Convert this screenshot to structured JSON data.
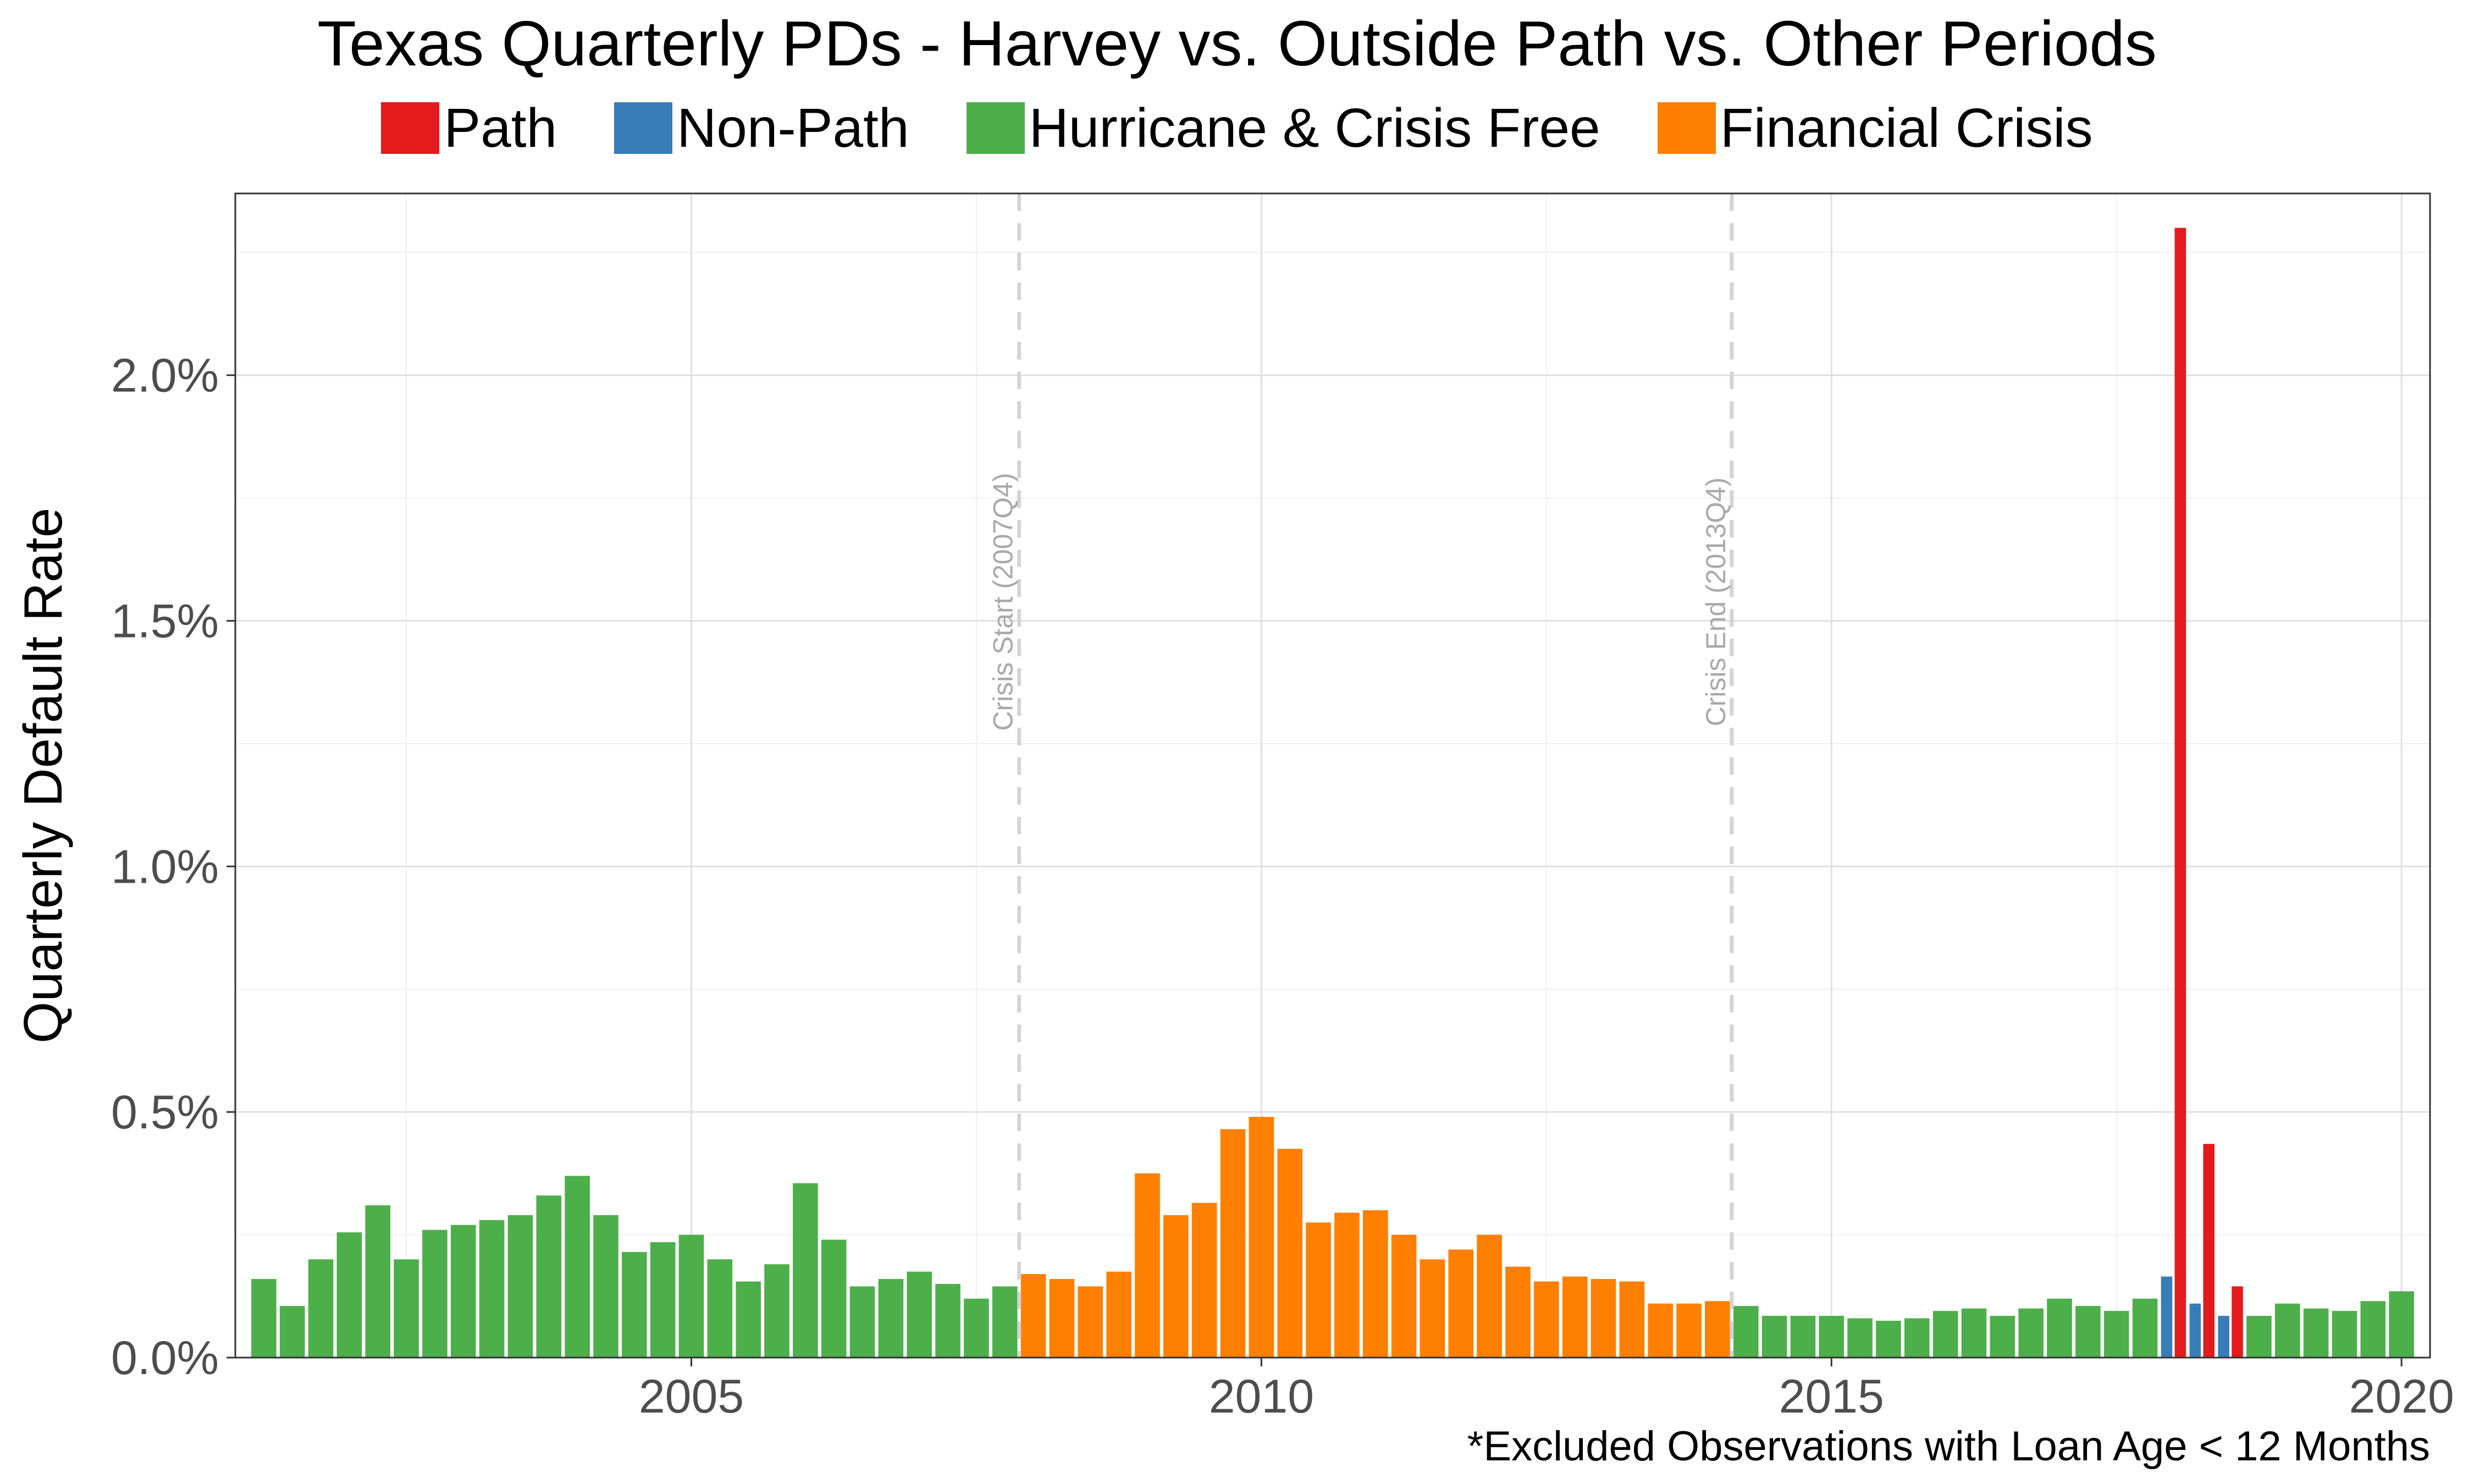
{
  "chart_data": {
    "type": "bar",
    "title": "Texas Quarterly PDs - Harvey vs. Outside Path vs. Other Periods",
    "ylabel": "Quarterly Default Rate",
    "xlabel": "",
    "footnote": "*Excluded Observations with Loan Age < 12 Months",
    "ylim": [
      0,
      2.37
    ],
    "xlim": [
      2001.0,
      2020.25
    ],
    "y_ticks": [
      0,
      0.5,
      1.0,
      1.5,
      2.0
    ],
    "y_tick_labels": [
      "0.0%",
      "0.5%",
      "1.0%",
      "1.5%",
      "2.0%"
    ],
    "x_ticks": [
      2005,
      2010,
      2015,
      2020
    ],
    "x_tick_labels": [
      "2005",
      "2010",
      "2015",
      "2020"
    ],
    "grid": true,
    "legend_position": "top",
    "legend": [
      {
        "key": "path",
        "label": "Path",
        "color": "#E41A1C"
      },
      {
        "key": "nonpath",
        "label": "Non-Path",
        "color": "#377EB8"
      },
      {
        "key": "free",
        "label": "Hurricane & Crisis Free",
        "color": "#4DAF4A"
      },
      {
        "key": "crisis",
        "label": "Financial Crisis",
        "color": "#FF7F00"
      }
    ],
    "annotations": [
      {
        "x": 2007.875,
        "label": "Crisis Start (2007Q4)"
      },
      {
        "x": 2014.125,
        "label": "Crisis End (2013Q4)"
      }
    ],
    "bar_width_years": 0.22,
    "bars": [
      {
        "x": 2001.25,
        "group": "free",
        "value": 0.16
      },
      {
        "x": 2001.5,
        "group": "free",
        "value": 0.105
      },
      {
        "x": 2001.75,
        "group": "free",
        "value": 0.2
      },
      {
        "x": 2002.0,
        "group": "free",
        "value": 0.255
      },
      {
        "x": 2002.25,
        "group": "free",
        "value": 0.31
      },
      {
        "x": 2002.5,
        "group": "free",
        "value": 0.2
      },
      {
        "x": 2002.75,
        "group": "free",
        "value": 0.26
      },
      {
        "x": 2003.0,
        "group": "free",
        "value": 0.27
      },
      {
        "x": 2003.25,
        "group": "free",
        "value": 0.28
      },
      {
        "x": 2003.5,
        "group": "free",
        "value": 0.29
      },
      {
        "x": 2003.75,
        "group": "free",
        "value": 0.33
      },
      {
        "x": 2004.0,
        "group": "free",
        "value": 0.37
      },
      {
        "x": 2004.25,
        "group": "free",
        "value": 0.29
      },
      {
        "x": 2004.5,
        "group": "free",
        "value": 0.215
      },
      {
        "x": 2004.75,
        "group": "free",
        "value": 0.235
      },
      {
        "x": 2005.0,
        "group": "free",
        "value": 0.25
      },
      {
        "x": 2005.25,
        "group": "free",
        "value": 0.2
      },
      {
        "x": 2005.5,
        "group": "free",
        "value": 0.155
      },
      {
        "x": 2005.75,
        "group": "free",
        "value": 0.19
      },
      {
        "x": 2006.0,
        "group": "free",
        "value": 0.355
      },
      {
        "x": 2006.25,
        "group": "free",
        "value": 0.24
      },
      {
        "x": 2006.5,
        "group": "free",
        "value": 0.145
      },
      {
        "x": 2006.75,
        "group": "free",
        "value": 0.16
      },
      {
        "x": 2007.0,
        "group": "free",
        "value": 0.175
      },
      {
        "x": 2007.25,
        "group": "free",
        "value": 0.15
      },
      {
        "x": 2007.5,
        "group": "free",
        "value": 0.12
      },
      {
        "x": 2007.75,
        "group": "free",
        "value": 0.145
      },
      {
        "x": 2008.0,
        "group": "crisis",
        "value": 0.17
      },
      {
        "x": 2008.25,
        "group": "crisis",
        "value": 0.16
      },
      {
        "x": 2008.5,
        "group": "crisis",
        "value": 0.145
      },
      {
        "x": 2008.75,
        "group": "crisis",
        "value": 0.175
      },
      {
        "x": 2009.0,
        "group": "crisis",
        "value": 0.375
      },
      {
        "x": 2009.25,
        "group": "crisis",
        "value": 0.29
      },
      {
        "x": 2009.5,
        "group": "crisis",
        "value": 0.315
      },
      {
        "x": 2009.75,
        "group": "crisis",
        "value": 0.465
      },
      {
        "x": 2010.0,
        "group": "crisis",
        "value": 0.49
      },
      {
        "x": 2010.25,
        "group": "crisis",
        "value": 0.425
      },
      {
        "x": 2010.5,
        "group": "crisis",
        "value": 0.275
      },
      {
        "x": 2010.75,
        "group": "crisis",
        "value": 0.295
      },
      {
        "x": 2011.0,
        "group": "crisis",
        "value": 0.3
      },
      {
        "x": 2011.25,
        "group": "crisis",
        "value": 0.25
      },
      {
        "x": 2011.5,
        "group": "crisis",
        "value": 0.2
      },
      {
        "x": 2011.75,
        "group": "crisis",
        "value": 0.22
      },
      {
        "x": 2012.0,
        "group": "crisis",
        "value": 0.25
      },
      {
        "x": 2012.25,
        "group": "crisis",
        "value": 0.185
      },
      {
        "x": 2012.5,
        "group": "crisis",
        "value": 0.155
      },
      {
        "x": 2012.75,
        "group": "crisis",
        "value": 0.165
      },
      {
        "x": 2013.0,
        "group": "crisis",
        "value": 0.16
      },
      {
        "x": 2013.25,
        "group": "crisis",
        "value": 0.155
      },
      {
        "x": 2013.5,
        "group": "crisis",
        "value": 0.11
      },
      {
        "x": 2013.75,
        "group": "crisis",
        "value": 0.11
      },
      {
        "x": 2014.0,
        "group": "crisis",
        "value": 0.115
      },
      {
        "x": 2014.25,
        "group": "free",
        "value": 0.105
      },
      {
        "x": 2014.5,
        "group": "free",
        "value": 0.085
      },
      {
        "x": 2014.75,
        "group": "free",
        "value": 0.085
      },
      {
        "x": 2015.0,
        "group": "free",
        "value": 0.085
      },
      {
        "x": 2015.25,
        "group": "free",
        "value": 0.08
      },
      {
        "x": 2015.5,
        "group": "free",
        "value": 0.075
      },
      {
        "x": 2015.75,
        "group": "free",
        "value": 0.08
      },
      {
        "x": 2016.0,
        "group": "free",
        "value": 0.095
      },
      {
        "x": 2016.25,
        "group": "free",
        "value": 0.1
      },
      {
        "x": 2016.5,
        "group": "free",
        "value": 0.085
      },
      {
        "x": 2016.75,
        "group": "free",
        "value": 0.1
      },
      {
        "x": 2017.0,
        "group": "free",
        "value": 0.12
      },
      {
        "x": 2017.25,
        "group": "free",
        "value": 0.105
      },
      {
        "x": 2017.5,
        "group": "free",
        "value": 0.095
      },
      {
        "x": 2017.75,
        "group": "free",
        "value": 0.12
      },
      {
        "x": 2017.94,
        "group": "nonpath",
        "value": 0.165
      },
      {
        "x": 2018.06,
        "group": "path",
        "value": 2.3
      },
      {
        "x": 2018.19,
        "group": "nonpath",
        "value": 0.11
      },
      {
        "x": 2018.31,
        "group": "path",
        "value": 0.435
      },
      {
        "x": 2018.44,
        "group": "nonpath",
        "value": 0.085
      },
      {
        "x": 2018.56,
        "group": "path",
        "value": 0.145
      },
      {
        "x": 2018.75,
        "group": "free",
        "value": 0.085
      },
      {
        "x": 2019.0,
        "group": "free",
        "value": 0.11
      },
      {
        "x": 2019.25,
        "group": "free",
        "value": 0.1
      },
      {
        "x": 2019.5,
        "group": "free",
        "value": 0.095
      },
      {
        "x": 2019.75,
        "group": "free",
        "value": 0.115
      },
      {
        "x": 2020.0,
        "group": "free",
        "value": 0.135
      }
    ]
  }
}
